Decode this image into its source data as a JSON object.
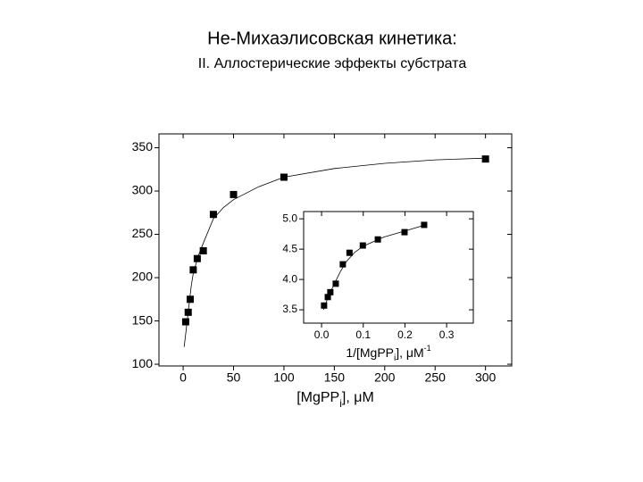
{
  "header": {
    "title": "Не-Михаэлисовская кинетика:",
    "subtitle": "II. Аллостерические эффекты субстрата"
  },
  "chart_data": [
    {
      "type": "scatter",
      "x": [
        2.5,
        5,
        7,
        10,
        14,
        20,
        30,
        50,
        100,
        300
      ],
      "values": [
        149,
        160,
        175,
        209,
        222,
        231,
        273,
        296,
        316,
        337
      ],
      "fit": {
        "x": [
          1,
          3,
          5,
          8,
          10,
          15,
          20,
          30,
          40,
          50,
          75,
          100,
          150,
          200,
          250,
          300
        ],
        "values": [
          120,
          140,
          160,
          190,
          205,
          225,
          240,
          268,
          281,
          290,
          305,
          316,
          326,
          332,
          336,
          338
        ]
      },
      "xlim": [
        -24,
        326
      ],
      "ylim": [
        98,
        366
      ],
      "xticks": [
        0,
        50,
        100,
        150,
        200,
        250,
        300
      ],
      "yticks": [
        100,
        150,
        200,
        250,
        300,
        350
      ],
      "xlabel": {
        "main": "[MgPP",
        "sub": "i",
        "end": "], μM"
      },
      "color": "#000000"
    },
    {
      "type": "scatter",
      "x": [
        0.006,
        0.015,
        0.021,
        0.034,
        0.051,
        0.067,
        0.099,
        0.135,
        0.199,
        0.246
      ],
      "values": [
        3.57,
        3.71,
        3.79,
        3.93,
        4.25,
        4.44,
        4.56,
        4.66,
        4.78,
        4.9
      ],
      "fit": {
        "x": [
          0.005,
          0.015,
          0.03,
          0.045,
          0.06,
          0.08,
          0.1,
          0.15,
          0.2,
          0.25
        ],
        "values": [
          3.5,
          3.7,
          3.92,
          4.13,
          4.3,
          4.45,
          4.55,
          4.7,
          4.8,
          4.9
        ]
      },
      "xlim": [
        -0.043,
        0.364
      ],
      "ylim": [
        3.28,
        5.12
      ],
      "xticks": [
        {
          "value": 0,
          "label": "0.0"
        },
        0.1,
        0.2,
        0.3
      ],
      "yticks": [
        3.5,
        {
          "value": 4,
          "label": "4.0"
        },
        4.5,
        {
          "value": 5,
          "label": "5.0"
        }
      ],
      "xlabel": {
        "main": "1/[MgPP",
        "sub": "i",
        "end": "], μM",
        "sup": "-1"
      },
      "color": "#000000"
    }
  ]
}
